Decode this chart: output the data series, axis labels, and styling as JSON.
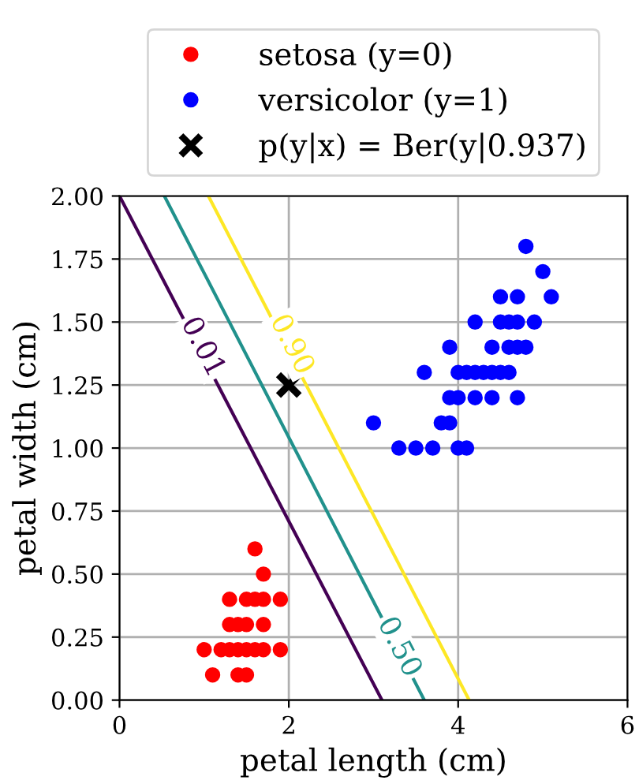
{
  "chart_data": {
    "type": "scatter",
    "xlabel": "petal length (cm)",
    "ylabel": "petal width (cm)",
    "xlim": [
      0,
      6
    ],
    "xticks": [
      0,
      2,
      4,
      6
    ],
    "ylim": [
      0,
      2
    ],
    "yticks": [
      {
        "value": 0,
        "label": "0.00"
      },
      {
        "value": 0.25,
        "label": "0.25"
      },
      {
        "value": 0.5,
        "label": "0.50"
      },
      {
        "value": 0.75,
        "label": "0.75"
      },
      {
        "value": 1,
        "label": "1.00"
      },
      {
        "value": 1.25,
        "label": "1.25"
      },
      {
        "value": 1.5,
        "label": "1.50"
      },
      {
        "value": 1.75,
        "label": "1.75"
      },
      {
        "value": 2,
        "label": "2.00"
      }
    ],
    "grid": true,
    "legend": "top",
    "series": [
      {
        "type": "line",
        "color": "#440154",
        "x": [
          0,
          3.1
        ],
        "values": [
          2.0,
          0
        ]
      },
      {
        "type": "line",
        "color": "#21918c",
        "x": [
          0.53,
          3.6
        ],
        "values": [
          2.0,
          0
        ]
      },
      {
        "type": "line",
        "color": "#fde725",
        "x": [
          1.05,
          4.13
        ],
        "values": [
          2.0,
          0
        ]
      },
      {
        "name": "setosa (y=0)",
        "color": "#ff0000",
        "marker": "circle",
        "x": [
          1.6,
          1.7,
          1.3,
          1.5,
          1.6,
          1.7,
          1.9,
          1.3,
          1.4,
          1.5,
          1.7,
          1.0,
          1.2,
          1.3,
          1.4,
          1.5,
          1.6,
          1.7,
          1.9,
          1.1,
          1.4,
          1.5
        ],
        "values": [
          0.6,
          0.5,
          0.4,
          0.4,
          0.4,
          0.4,
          0.4,
          0.3,
          0.3,
          0.3,
          0.3,
          0.2,
          0.2,
          0.2,
          0.2,
          0.2,
          0.2,
          0.2,
          0.2,
          0.1,
          0.1,
          0.1
        ]
      },
      {
        "name": "versicolor (y=1)",
        "color": "#0000ff",
        "marker": "circle",
        "x": [
          4.8,
          5.0,
          4.5,
          4.7,
          5.1,
          4.2,
          4.5,
          4.6,
          4.7,
          4.9,
          3.9,
          4.4,
          4.6,
          4.7,
          4.8,
          3.6,
          4.0,
          4.1,
          4.2,
          4.3,
          4.4,
          4.5,
          4.6,
          3.9,
          4.0,
          4.2,
          4.4,
          4.7,
          3.0,
          3.8,
          3.9,
          3.3,
          3.5,
          3.7,
          4.0,
          4.1
        ],
        "values": [
          1.8,
          1.7,
          1.6,
          1.6,
          1.6,
          1.5,
          1.5,
          1.5,
          1.5,
          1.5,
          1.4,
          1.4,
          1.4,
          1.4,
          1.4,
          1.3,
          1.3,
          1.3,
          1.3,
          1.3,
          1.3,
          1.3,
          1.3,
          1.2,
          1.2,
          1.2,
          1.2,
          1.2,
          1.1,
          1.1,
          1.1,
          1.0,
          1.0,
          1.0,
          1.0,
          1.0
        ]
      },
      {
        "name": "p(y|x) = Ber(y|0.937)",
        "color": "#000000",
        "marker": "cross",
        "x": [
          2
        ],
        "values": [
          1.25
        ]
      }
    ],
    "annotations": [
      {
        "text": "0.01",
        "x": 0.98,
        "y": 1.4
      },
      {
        "text": "0.50",
        "x": 3.3,
        "y": 0.21
      },
      {
        "text": "0.90",
        "x": 2.03,
        "y": 1.41
      }
    ]
  }
}
